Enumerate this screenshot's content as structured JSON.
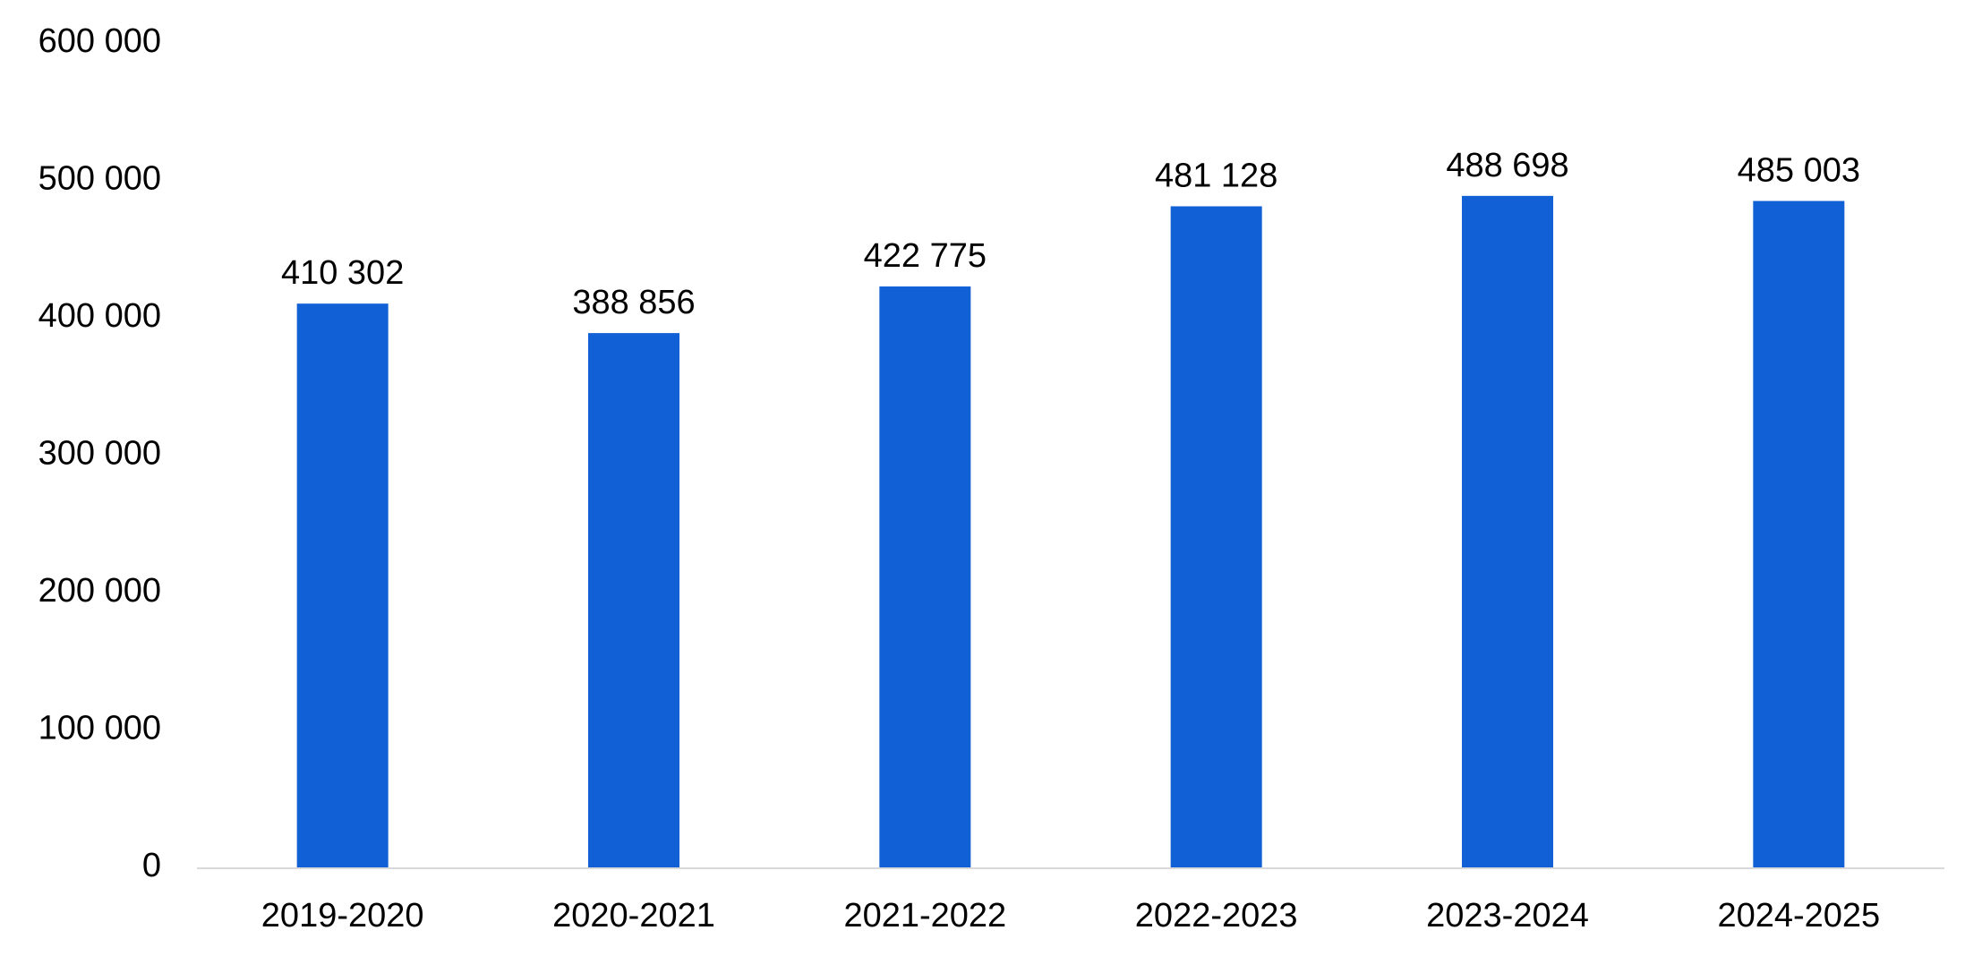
{
  "chart_data": {
    "type": "bar",
    "categories": [
      "2019-2020",
      "2020-2021",
      "2021-2022",
      "2022-2023",
      "2023-2024",
      "2024-2025"
    ],
    "values": [
      410302,
      388856,
      422775,
      481128,
      488698,
      485003
    ],
    "value_labels": [
      "410 302",
      "388 856",
      "422 775",
      "481 128",
      "488 698",
      "485 003"
    ],
    "ylim": [
      0,
      600000
    ],
    "yticks": [
      0,
      100000,
      200000,
      300000,
      400000,
      500000,
      600000
    ],
    "ytick_labels": [
      "0",
      "100 000",
      "200 000",
      "300 000",
      "400 000",
      "500 000",
      "600 000"
    ],
    "title": "",
    "xlabel": "",
    "ylabel": "",
    "grid": false,
    "legend": "none",
    "bar_color": "#1160D6",
    "axis_color": "#D9D9D9"
  }
}
